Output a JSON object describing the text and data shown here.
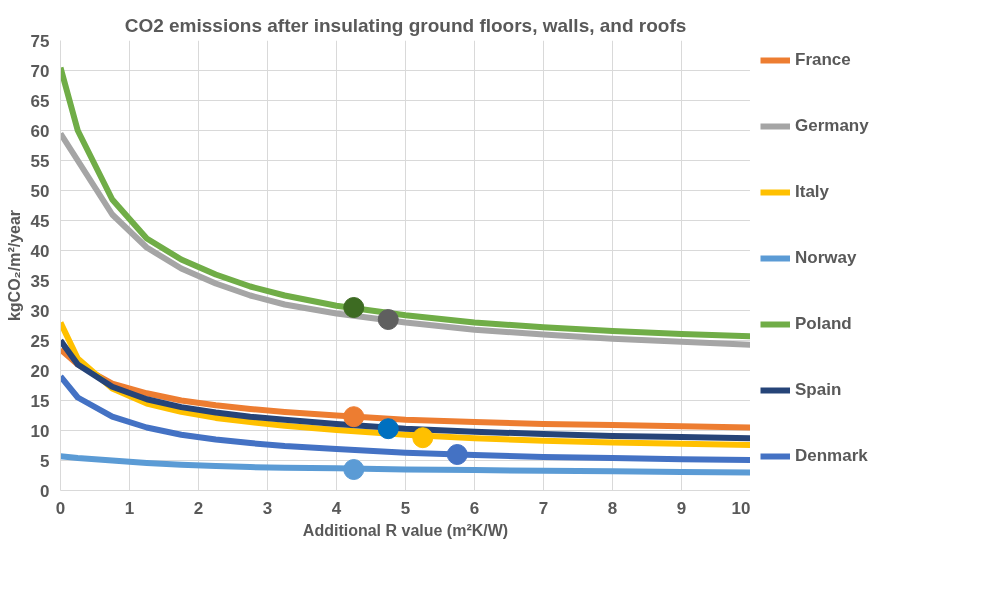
{
  "chart_data": {
    "type": "line",
    "title": "CO2 emissions after insulating ground floors, walls, and roofs",
    "xlabel": "Additional R value (m²K/W)",
    "ylabel": "kgCO₂/m²/year",
    "x": [
      0,
      0.25,
      0.75,
      1.25,
      1.75,
      2.25,
      2.75,
      3.25,
      4,
      5,
      6,
      7,
      8,
      9,
      10
    ],
    "xlim": [
      0,
      10
    ],
    "xticks": [
      0,
      1,
      2,
      3,
      4,
      5,
      6,
      7,
      8,
      9,
      10
    ],
    "ylim": [
      0,
      75
    ],
    "yticks": [
      0,
      5,
      10,
      15,
      20,
      25,
      30,
      35,
      40,
      45,
      50,
      55,
      60,
      65,
      70,
      75
    ],
    "grid": true,
    "legend": "right",
    "marker": "none",
    "line_style": "solid",
    "series": [
      {
        "name": "France",
        "color": "#ed7d31",
        "values": [
          23.5,
          21,
          17.8,
          16.2,
          15,
          14.2,
          13.6,
          13.1,
          12.5,
          11.8,
          11.4,
          11.1,
          10.9,
          10.7,
          10.5
        ]
      },
      {
        "name": "Germany",
        "color": "#a5a5a5",
        "values": [
          59.5,
          55,
          46,
          40.5,
          37,
          34.5,
          32.5,
          31,
          29.5,
          28,
          26.8,
          26,
          25.3,
          24.8,
          24.3
        ]
      },
      {
        "name": "Italy",
        "color": "#ffc000",
        "values": [
          28,
          22,
          17,
          14.5,
          13.1,
          12.1,
          11.4,
          10.8,
          10.1,
          9.3,
          8.7,
          8.3,
          8.0,
          7.8,
          7.6
        ]
      },
      {
        "name": "Norway",
        "color": "#5b9bd5",
        "values": [
          5.7,
          5.4,
          5.0,
          4.6,
          4.3,
          4.1,
          3.9,
          3.8,
          3.7,
          3.5,
          3.4,
          3.3,
          3.2,
          3.1,
          3.0
        ]
      },
      {
        "name": "Poland",
        "color": "#70ad47",
        "values": [
          70.5,
          60,
          48.5,
          42,
          38.5,
          36,
          34,
          32.5,
          30.8,
          29.2,
          28,
          27.2,
          26.6,
          26.1,
          25.7
        ]
      },
      {
        "name": "Spain",
        "color": "#264478",
        "values": [
          25,
          21,
          17.3,
          15.2,
          13.9,
          13,
          12.3,
          11.8,
          11.1,
          10.3,
          9.8,
          9.4,
          9.1,
          8.9,
          8.7
        ]
      },
      {
        "name": "Denmark",
        "color": "#4472c4",
        "values": [
          19,
          15.5,
          12.3,
          10.5,
          9.3,
          8.5,
          7.9,
          7.4,
          6.9,
          6.3,
          5.9,
          5.6,
          5.4,
          5.2,
          5.1
        ]
      },
      {
        "type": "scatter",
        "marker": "circle",
        "x": [
          4.25,
          4.75,
          4.25,
          4.75,
          5.25,
          5.75,
          4.25
        ],
        "values": [
          30.5,
          28.5,
          12.3,
          10.3,
          8.8,
          6.0,
          3.5
        ],
        "colors": [
          "#3d6b22",
          "#5f5f5f",
          "#ed7d31",
          "#0070c0",
          "#ffc000",
          "#4472c4",
          "#5b9bd5"
        ]
      }
    ]
  }
}
